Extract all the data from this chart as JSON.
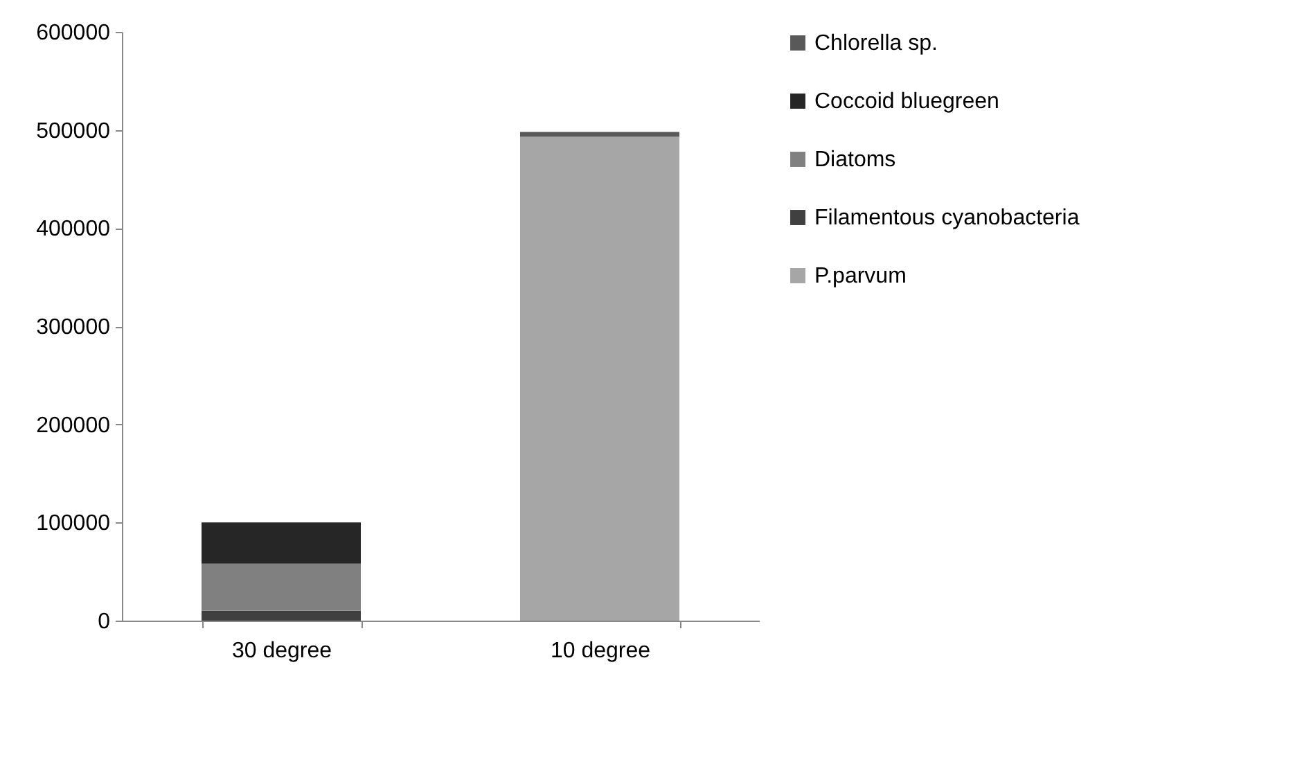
{
  "chart_data": {
    "type": "bar",
    "stacked": true,
    "categories": [
      "30 degree",
      "10 degree"
    ],
    "series": [
      {
        "name": "P.parvum",
        "color": "#a6a6a6",
        "values": [
          0,
          493000
        ]
      },
      {
        "name": "Filamentous cyanobacteria",
        "color": "#404040",
        "values": [
          10000,
          0
        ]
      },
      {
        "name": "Diatoms",
        "color": "#808080",
        "values": [
          48000,
          0
        ]
      },
      {
        "name": "Coccoid bluegreen",
        "color": "#262626",
        "values": [
          42000,
          0
        ]
      },
      {
        "name": "Chlorella sp.",
        "color": "#595959",
        "values": [
          0,
          5000
        ]
      }
    ],
    "ylim": [
      0,
      600000
    ],
    "yticks": [
      0,
      100000,
      200000,
      300000,
      400000,
      500000,
      600000
    ],
    "grid": false,
    "legend": "right"
  }
}
